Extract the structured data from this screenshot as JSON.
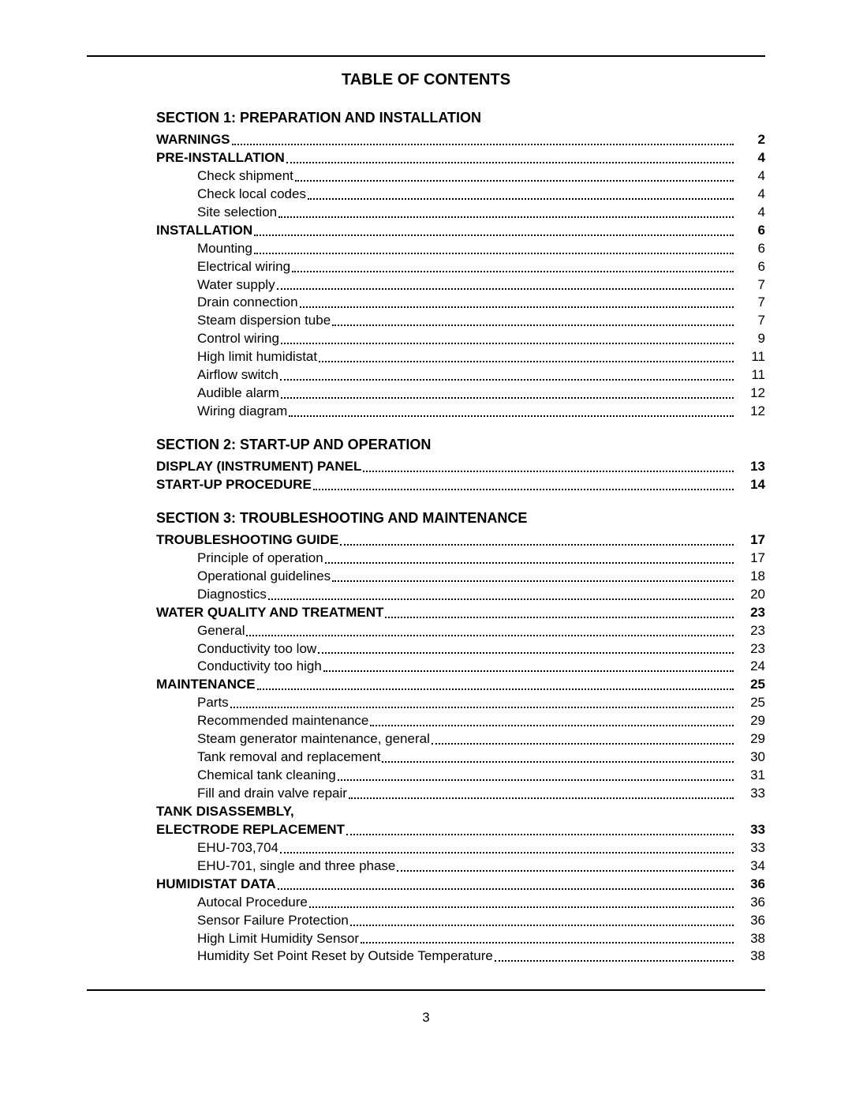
{
  "title": "TABLE OF CONTENTS",
  "page_number": "3",
  "colors": {
    "text": "#000000",
    "background": "#ffffff",
    "rule": "#000000"
  },
  "typography": {
    "font_family": "Arial, Helvetica, sans-serif",
    "title_fontsize": 20,
    "section_fontsize": 18,
    "entry_fontsize": 17
  },
  "sections": [
    {
      "heading": "SECTION 1:   PREPARATION AND INSTALLATION",
      "entries": [
        {
          "type": "major",
          "label": "WARNINGS",
          "page": "2"
        },
        {
          "type": "major",
          "label": "PRE-INSTALLATION",
          "page": "4"
        },
        {
          "type": "sub",
          "label": "Check shipment",
          "page": "4"
        },
        {
          "type": "sub",
          "label": "Check local codes",
          "page": "4"
        },
        {
          "type": "sub",
          "label": "Site selection",
          "page": "4"
        },
        {
          "type": "major",
          "label": "INSTALLATION",
          "page": "6"
        },
        {
          "type": "sub",
          "label": "Mounting",
          "page": "6"
        },
        {
          "type": "sub",
          "label": "Electrical wiring",
          "page": "6"
        },
        {
          "type": "sub",
          "label": "Water supply",
          "page": "7"
        },
        {
          "type": "sub",
          "label": "Drain connection",
          "page": "7"
        },
        {
          "type": "sub",
          "label": "Steam dispersion tube",
          "page": "7"
        },
        {
          "type": "sub",
          "label": "Control wiring",
          "page": "9"
        },
        {
          "type": "sub",
          "label": "High limit humidistat",
          "page": "11"
        },
        {
          "type": "sub",
          "label": "Airflow switch",
          "page": "11"
        },
        {
          "type": "sub",
          "label": "Audible alarm",
          "page": "12"
        },
        {
          "type": "sub",
          "label": "Wiring diagram",
          "page": "12"
        }
      ]
    },
    {
      "heading": "SECTION 2: START-UP AND OPERATION",
      "entries": [
        {
          "type": "major",
          "label": "DISPLAY (INSTRUMENT) PANEL",
          "page": "13"
        },
        {
          "type": "major",
          "label": "START-UP PROCEDURE",
          "page": "14"
        }
      ]
    },
    {
      "heading": "SECTION 3:   TROUBLESHOOTING AND MAINTENANCE",
      "entries": [
        {
          "type": "major",
          "label": "TROUBLESHOOTING GUIDE",
          "page": "17"
        },
        {
          "type": "sub",
          "label": "Principle of operation",
          "page": "17"
        },
        {
          "type": "sub",
          "label": "Operational guidelines",
          "page": "18"
        },
        {
          "type": "sub",
          "label": "Diagnostics",
          "page": "20"
        },
        {
          "type": "major",
          "label": "WATER QUALITY AND TREATMENT",
          "page": "23"
        },
        {
          "type": "sub",
          "label": "General",
          "page": "23"
        },
        {
          "type": "sub",
          "label": "Conductivity too low",
          "page": "23"
        },
        {
          "type": "sub",
          "label": "Conductivity too high",
          "page": "24"
        },
        {
          "type": "major",
          "label": "MAINTENANCE",
          "page": "25"
        },
        {
          "type": "sub",
          "label": "Parts",
          "page": "25"
        },
        {
          "type": "sub",
          "label": "Recommended maintenance",
          "page": "29"
        },
        {
          "type": "sub",
          "label": "Steam generator maintenance, general",
          "page": "29"
        },
        {
          "type": "sub",
          "label": "Tank removal and replacement",
          "page": "30"
        },
        {
          "type": "sub",
          "label": "Chemical tank cleaning",
          "page": "31"
        },
        {
          "type": "sub",
          "label": "Fill and drain valve repair",
          "page": "33"
        },
        {
          "type": "major-nopage",
          "label": "TANK DISASSEMBLY,"
        },
        {
          "type": "major",
          "label": "ELECTRODE REPLACEMENT",
          "page": "33"
        },
        {
          "type": "sub",
          "label": "EHU-703,704",
          "page": "33"
        },
        {
          "type": "sub",
          "label": "EHU-701, single and three phase",
          "page": "34"
        },
        {
          "type": "major",
          "label": "HUMIDISTAT DATA",
          "page": "36"
        },
        {
          "type": "sub",
          "label": "Autocal Procedure",
          "page": "36"
        },
        {
          "type": "sub",
          "label": "Sensor Failure Protection",
          "page": "36"
        },
        {
          "type": "sub",
          "label": "High Limit Humidity Sensor ",
          "page": "38"
        },
        {
          "type": "sub",
          "label": "Humidity Set Point Reset by Outside Temperature ",
          "page": "38"
        }
      ]
    }
  ]
}
